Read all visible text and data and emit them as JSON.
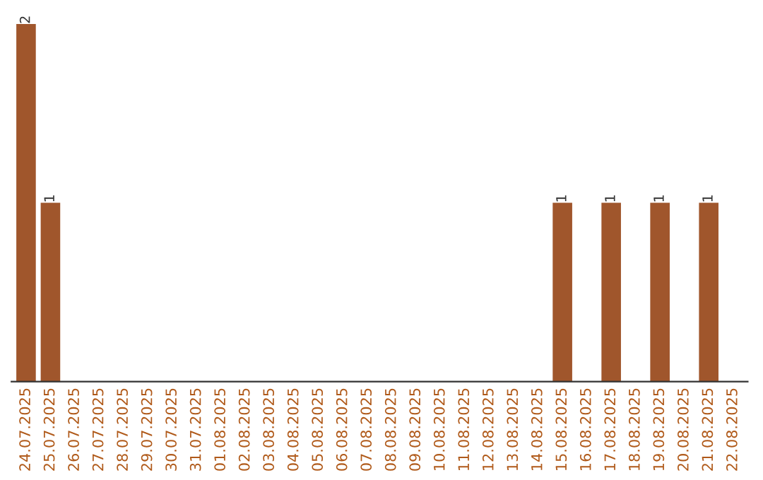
{
  "chart_data": {
    "type": "bar",
    "categories": [
      "24.07.2025",
      "25.07.2025",
      "26.07.2025",
      "27.07.2025",
      "28.07.2025",
      "29.07.2025",
      "30.07.2025",
      "31.07.2025",
      "01.08.2025",
      "02.08.2025",
      "03.08.2025",
      "04.08.2025",
      "05.08.2025",
      "06.08.2025",
      "07.08.2025",
      "08.08.2025",
      "09.08.2025",
      "10.08.2025",
      "11.08.2025",
      "12.08.2025",
      "13.08.2025",
      "14.08.2025",
      "15.08.2025",
      "16.08.2025",
      "17.08.2025",
      "18.08.2025",
      "19.08.2025",
      "20.08.2025",
      "21.08.2025",
      "22.08.2025"
    ],
    "values": [
      2,
      1,
      0,
      0,
      0,
      0,
      0,
      0,
      0,
      0,
      0,
      0,
      0,
      0,
      0,
      0,
      0,
      0,
      0,
      0,
      0,
      0,
      1,
      0,
      1,
      0,
      1,
      0,
      1,
      0
    ],
    "value_labels": [
      "2",
      "1",
      null,
      null,
      null,
      null,
      null,
      null,
      null,
      null,
      null,
      null,
      null,
      null,
      null,
      null,
      null,
      null,
      null,
      null,
      null,
      null,
      "1",
      null,
      "1",
      null,
      "1",
      null,
      "1",
      null
    ],
    "color": "#a0562c",
    "tick_labels": "x",
    "grid": false,
    "legend": false
  }
}
